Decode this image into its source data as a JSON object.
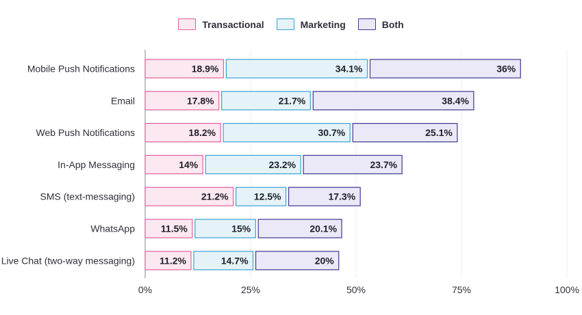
{
  "chart_data": {
    "type": "bar",
    "orientation": "horizontal",
    "stacked": true,
    "categories": [
      "Mobile Push Notifications",
      "Email",
      "Web Push Notifications",
      "In-App Messaging",
      "SMS (text-messaging)",
      "WhatsApp",
      "Live Chat (two-way messaging)"
    ],
    "series": [
      {
        "name": "Transactional",
        "values": [
          18.9,
          17.8,
          18.2,
          14,
          21.2,
          11.5,
          11.2
        ],
        "labels": [
          "18.9%",
          "17.8%",
          "18.2%",
          "14%",
          "21.2%",
          "11.5%",
          "11.2%"
        ],
        "fill": "#fce8f1",
        "stroke": "#e0609a"
      },
      {
        "name": "Marketing",
        "values": [
          34.1,
          21.7,
          30.7,
          23.2,
          12.5,
          15,
          14.7
        ],
        "labels": [
          "34.1%",
          "21.7%",
          "30.7%",
          "23.2%",
          "12.5%",
          "15%",
          "14.7%"
        ],
        "fill": "#e5f3f9",
        "stroke": "#3c9fcf"
      },
      {
        "name": "Both",
        "values": [
          36,
          38.4,
          25.1,
          23.7,
          17.3,
          20.1,
          20
        ],
        "labels": [
          "36%",
          "38.4%",
          "25.1%",
          "23.7%",
          "17.3%",
          "20.1%",
          "20%"
        ],
        "fill": "#ebe8f8",
        "stroke": "#3c3790"
      }
    ],
    "xlim": [
      0,
      100
    ],
    "xticks": [
      0,
      25,
      50,
      75,
      100
    ],
    "xtick_labels": [
      "0%",
      "25%",
      "50%",
      "75%",
      "100%"
    ],
    "xlabel": "",
    "ylabel": "",
    "title": "",
    "grid": "vertical",
    "legend_position": "top-center"
  }
}
